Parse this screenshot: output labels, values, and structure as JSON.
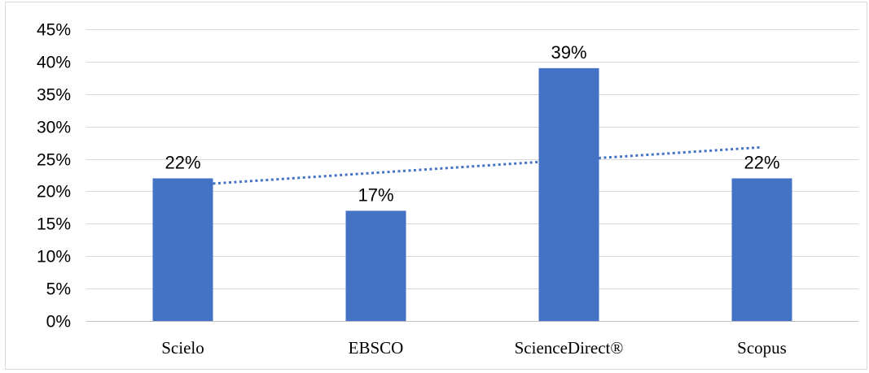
{
  "chart_data": {
    "type": "bar",
    "title": "",
    "xlabel": "",
    "ylabel": "",
    "categories": [
      "Scielo",
      "EBSCO",
      "ScienceDirect®",
      "Scopus"
    ],
    "values": [
      0.22,
      0.17,
      0.39,
      0.22
    ],
    "data_labels": [
      "22%",
      "17%",
      "39%",
      "22%"
    ],
    "ylim": [
      0,
      0.45
    ],
    "yticks": [
      0,
      0.05,
      0.1,
      0.15,
      0.2,
      0.25,
      0.3,
      0.35,
      0.4,
      0.45
    ],
    "ytick_labels": [
      "0%",
      "5%",
      "10%",
      "15%",
      "20%",
      "25%",
      "30%",
      "35%",
      "40%",
      "45%"
    ],
    "grid": true,
    "legend": "none",
    "trendline": {
      "type": "linear",
      "style": "dotted",
      "start": 0.212,
      "end": 0.268
    },
    "colors": {
      "bar": "#4472C4",
      "trendline": "#4472C4",
      "grid": "#d9d9d9",
      "axis": "#bfbfbf"
    }
  }
}
